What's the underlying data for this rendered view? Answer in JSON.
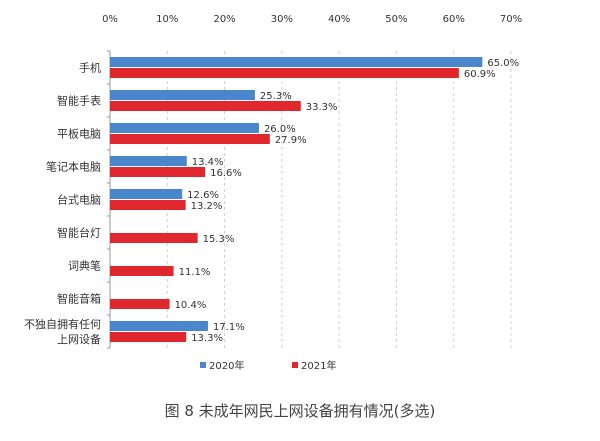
{
  "chart_data": {
    "type": "bar",
    "orientation": "horizontal",
    "title": "图 8 未成年网民上网设备拥有情况(多选)",
    "categories": [
      "手机",
      "智能手表",
      "平板电脑",
      "笔记本电脑",
      "台式电脑",
      "智能台灯",
      "词典笔",
      "智能音箱",
      "不独自拥有任何上网设备"
    ],
    "category_lines": [
      [
        "手机"
      ],
      [
        "智能手表"
      ],
      [
        "平板电脑"
      ],
      [
        "笔记本电脑"
      ],
      [
        "台式电脑"
      ],
      [
        "智能台灯"
      ],
      [
        "词典笔"
      ],
      [
        "智能音箱"
      ],
      [
        "不独自拥有任何",
        "上网设备"
      ]
    ],
    "series": [
      {
        "name": "2020年",
        "color": "#4a86cc",
        "values": [
          65.0,
          25.3,
          26.0,
          13.4,
          12.6,
          null,
          null,
          null,
          17.1
        ],
        "labels": [
          "65.0%",
          "25.3%",
          "26.0%",
          "13.4%",
          "12.6%",
          null,
          null,
          null,
          "17.1%"
        ]
      },
      {
        "name": "2021年",
        "color": "#e0272e",
        "values": [
          60.9,
          33.3,
          27.9,
          16.6,
          13.2,
          15.3,
          11.1,
          10.4,
          13.3
        ],
        "labels": [
          "60.9%",
          "33.3%",
          "27.9%",
          "16.6%",
          "13.2%",
          "15.3%",
          "11.1%",
          "10.4%",
          "13.3%"
        ]
      }
    ],
    "xlim": [
      0,
      70
    ],
    "xticks": [
      "0%",
      "10%",
      "20%",
      "30%",
      "40%",
      "50%",
      "60%",
      "70%"
    ],
    "x_axis_position": "top",
    "grid": "vertical dashed",
    "legend": "bottom"
  }
}
